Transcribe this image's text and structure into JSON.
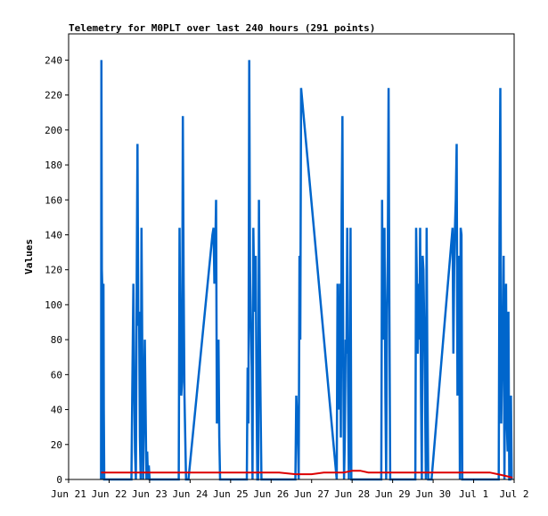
{
  "chart_data": {
    "type": "line",
    "title": "Telemetry for M0PLT over last 240 hours (291 points)",
    "xlabel": "",
    "ylabel": "Values",
    "ylim": [
      0,
      255
    ],
    "yticks": [
      0,
      20,
      40,
      60,
      80,
      100,
      120,
      140,
      160,
      180,
      200,
      220,
      240
    ],
    "xlim": [
      "Jun 21",
      "Jul 2"
    ],
    "xticks": [
      "Jun 21",
      "Jun 22",
      "Jun 23",
      "Jun 24",
      "Jun 25",
      "Jun 26",
      "Jun 27",
      "Jun 28",
      "Jun 29",
      "Jun 30",
      "Jul 1",
      "Jul 2"
    ],
    "grid": false,
    "colors": {
      "primary": "#0066cc",
      "secondary": "#dd0000"
    },
    "series": [
      {
        "color": "#0066cc",
        "x": [
          0.8,
          0.81,
          0.82,
          0.83,
          0.84,
          0.85,
          0.86,
          0.87,
          0.88,
          1.55,
          1.57,
          1.6,
          1.62,
          1.64,
          1.66,
          1.68,
          1.7,
          1.72,
          1.74,
          1.76,
          1.78,
          1.8,
          1.82,
          1.84,
          1.86,
          1.88,
          1.9,
          1.92,
          1.94,
          1.96,
          1.98,
          2.0,
          2.02,
          2.72,
          2.74,
          2.76,
          2.78,
          2.8,
          2.82,
          2.84,
          2.86,
          2.88,
          2.9,
          2.92,
          2.94,
          2.96,
          3.55,
          3.58,
          3.6,
          3.62,
          3.64,
          3.66,
          3.68,
          3.7,
          3.72,
          3.74,
          3.76,
          3.78,
          3.8,
          4.4,
          4.42,
          4.44,
          4.46,
          4.48,
          4.5,
          4.52,
          4.54,
          4.56,
          4.58,
          4.6,
          4.62,
          4.64,
          4.66,
          4.68,
          4.7,
          4.72,
          4.74,
          4.76,
          4.78,
          4.8,
          4.82,
          4.84,
          4.86,
          4.88,
          5.6,
          5.62,
          5.66,
          5.68,
          5.7,
          5.72,
          5.74,
          6.62,
          6.64,
          6.66,
          6.68,
          6.7,
          6.72,
          6.74,
          6.76,
          6.78,
          6.8,
          6.82,
          6.84,
          6.86,
          6.88,
          6.9,
          6.92,
          6.94,
          6.96,
          6.98,
          7.72,
          7.74,
          7.76,
          7.78,
          7.8,
          7.82,
          7.84,
          7.86,
          7.88,
          7.9,
          7.92,
          7.94,
          7.96,
          8.56,
          8.58,
          8.6,
          8.62,
          8.64,
          8.66,
          8.68,
          8.7,
          8.72,
          8.74,
          8.76,
          8.78,
          8.8,
          8.82,
          8.84,
          8.86,
          8.88,
          8.9,
          8.92,
          8.94,
          8.96,
          9.48,
          9.5,
          9.52,
          9.54,
          9.56,
          9.58,
          9.6,
          9.62,
          9.64,
          9.66,
          9.68,
          9.7,
          9.72,
          9.74,
          9.76,
          9.78,
          9.8,
          9.82,
          9.84,
          9.86,
          10.62,
          10.64,
          10.66,
          10.68,
          10.7,
          10.72,
          10.74,
          10.76,
          10.78,
          10.8,
          10.82,
          10.84,
          10.86,
          10.88,
          10.9,
          10.92,
          10.94
        ],
        "y": [
          0,
          240,
          120,
          112,
          56,
          0,
          112,
          40,
          0,
          0,
          48,
          112,
          56,
          16,
          0,
          112,
          192,
          88,
          96,
          24,
          0,
          144,
          72,
          0,
          40,
          80,
          40,
          0,
          16,
          0,
          8,
          0,
          0,
          0,
          144,
          72,
          48,
          56,
          208,
          112,
          48,
          24,
          0,
          0,
          0,
          0,
          140,
          144,
          112,
          128,
          160,
          32,
          64,
          80,
          24,
          0,
          0,
          0,
          0,
          0,
          64,
          32,
          240,
          120,
          88,
          64,
          0,
          144,
          112,
          96,
          128,
          48,
          0,
          0,
          160,
          88,
          40,
          0,
          0,
          0,
          0,
          0,
          0,
          0,
          0,
          48,
          24,
          0,
          128,
          80,
          224,
          0,
          112,
          48,
          40,
          112,
          24,
          152,
          208,
          72,
          0,
          24,
          80,
          72,
          144,
          56,
          0,
          40,
          144,
          0,
          0,
          160,
          80,
          128,
          144,
          48,
          0,
          96,
          128,
          224,
          96,
          0,
          0,
          0,
          144,
          112,
          72,
          112,
          80,
          144,
          48,
          0,
          128,
          120,
          88,
          48,
          0,
          144,
          56,
          0,
          0,
          0,
          0,
          0,
          144,
          72,
          120,
          144,
          160,
          192,
          48,
          64,
          128,
          0,
          144,
          140,
          0,
          0,
          0,
          0,
          0,
          0,
          0,
          0,
          0,
          144,
          224,
          32,
          64,
          80,
          128,
          0,
          72,
          112,
          32,
          16,
          96,
          0,
          0,
          48,
          0
        ]
      },
      {
        "color": "#dd0000",
        "x": [
          0.8,
          1.0,
          1.6,
          2.2,
          2.8,
          3.4,
          4.0,
          4.6,
          5.0,
          5.2,
          5.6,
          5.8,
          6.0,
          6.3,
          6.6,
          6.8,
          7.0,
          7.2,
          7.4,
          7.6,
          8.0,
          8.4,
          8.8,
          9.2,
          9.6,
          10.0,
          10.2,
          10.4,
          10.6,
          10.8,
          10.96
        ],
        "y": [
          4,
          4,
          4,
          4,
          4,
          4,
          4,
          4,
          4,
          4,
          3,
          3,
          3,
          4,
          4,
          4,
          5,
          5,
          4,
          4,
          4,
          4,
          4,
          4,
          4,
          4,
          4,
          4,
          3,
          2,
          1
        ]
      }
    ]
  }
}
